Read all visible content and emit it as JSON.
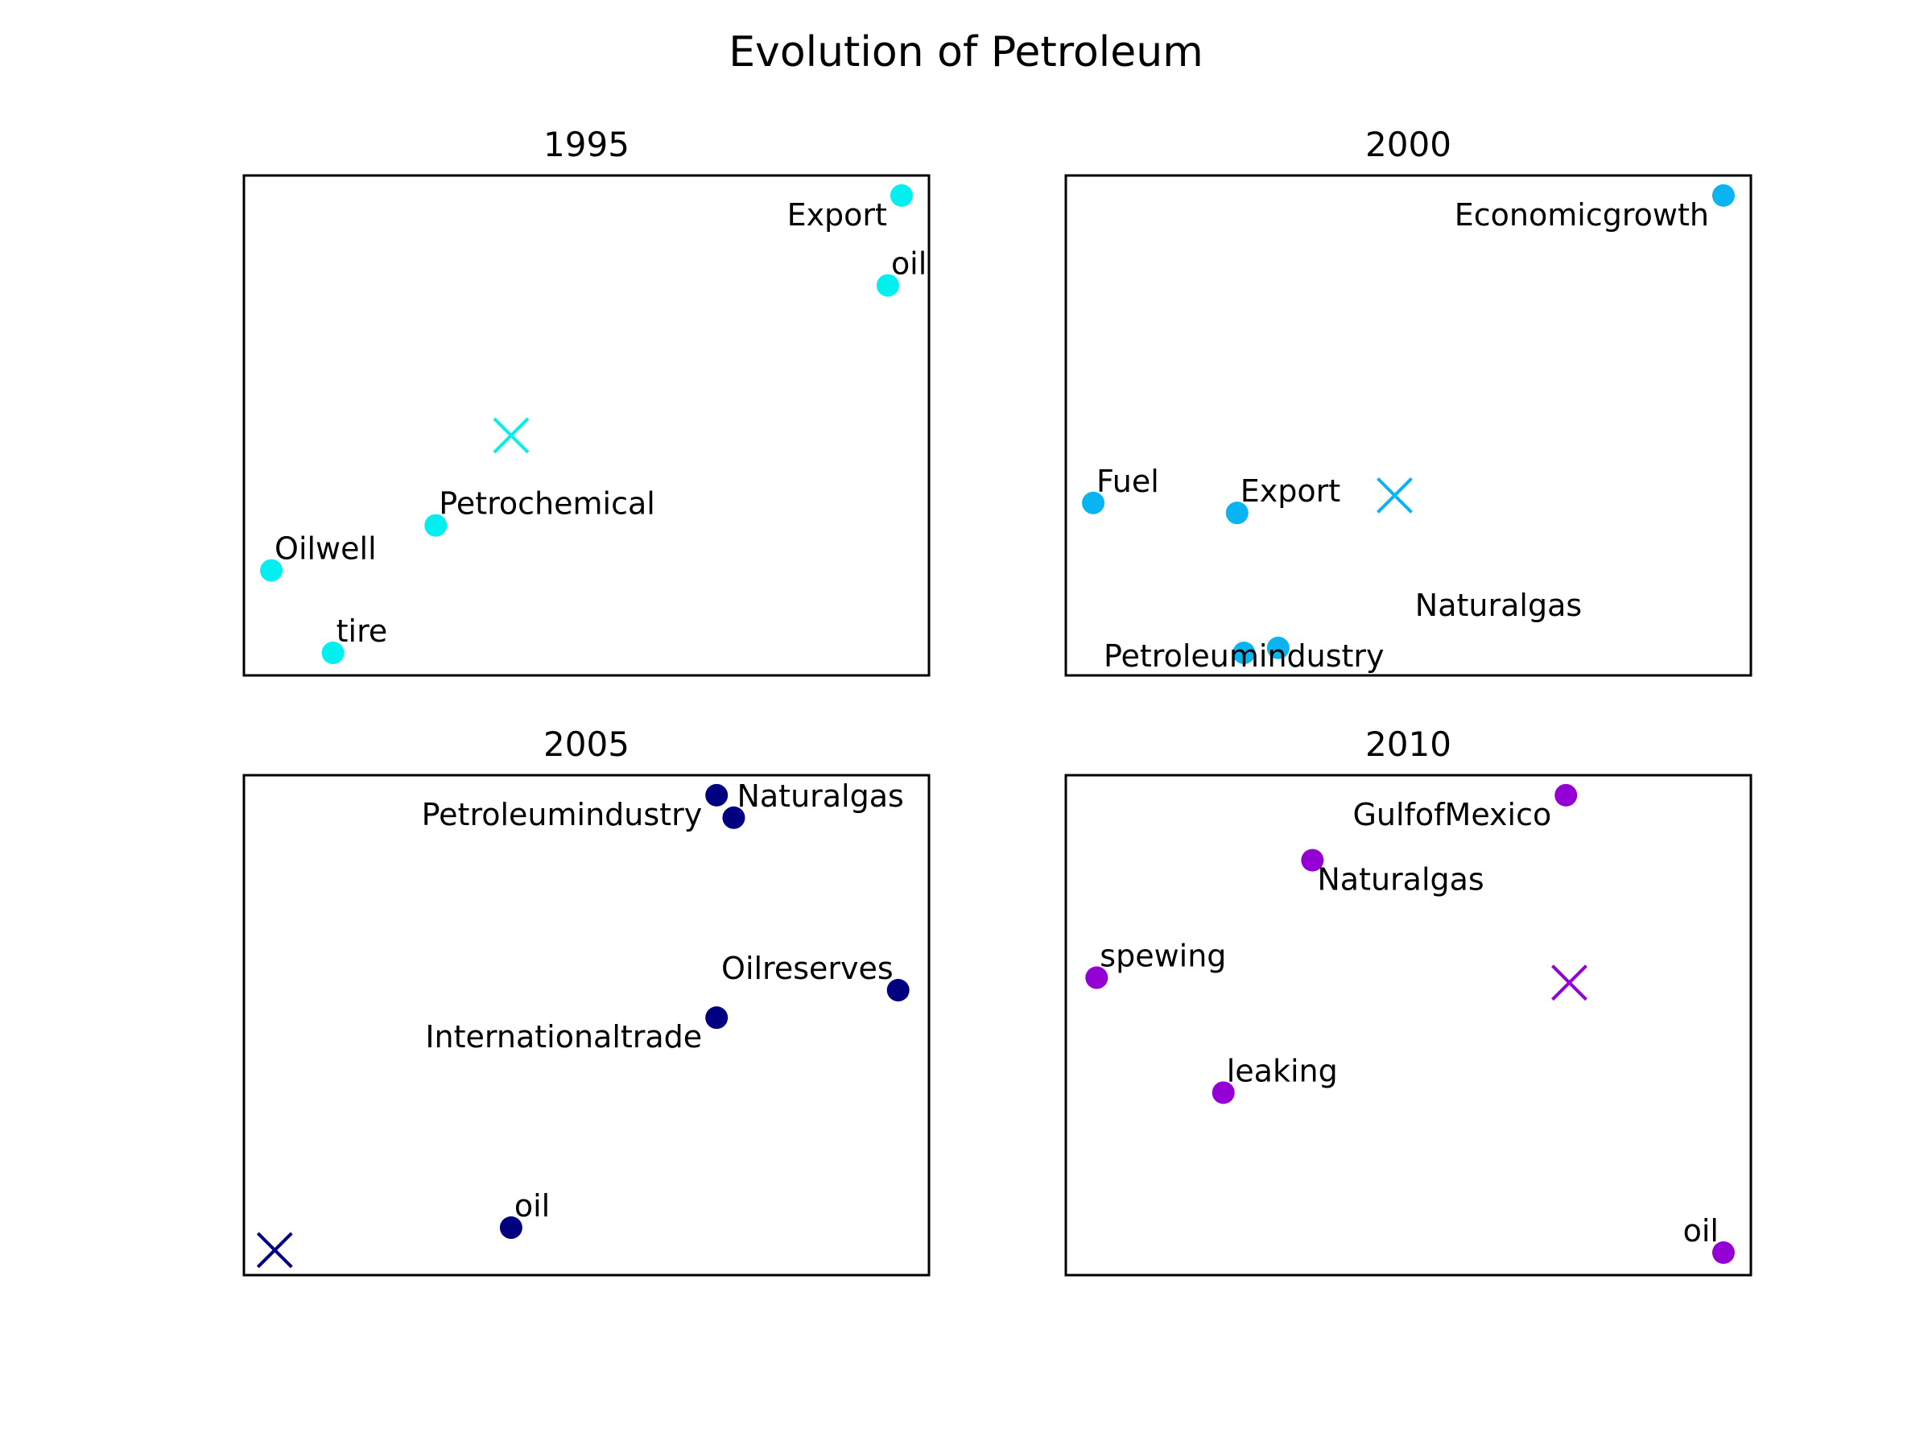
{
  "chart_data": {
    "type": "scatter",
    "title": "Evolution of Petroleum",
    "panels": [
      {
        "title": "1995",
        "color": "#00f0f0",
        "centroid": {
          "x": 3.9,
          "y": 4.8
        },
        "points": [
          {
            "label": "Export",
            "x": 9.6,
            "y": 9.6,
            "label_side": "left-below"
          },
          {
            "label": "oil",
            "x": 9.4,
            "y": 7.8,
            "label_side": "right-above"
          },
          {
            "label": "Petrochemical",
            "x": 2.8,
            "y": 3.0,
            "label_side": "right-above"
          },
          {
            "label": "Oilwell",
            "x": 0.4,
            "y": 2.1,
            "label_side": "right-above"
          },
          {
            "label": "tire",
            "x": 1.3,
            "y": 0.45,
            "label_side": "right-above"
          }
        ]
      },
      {
        "title": "2000",
        "color": "#0ab4f0",
        "centroid": {
          "x": 4.8,
          "y": 3.6
        },
        "points": [
          {
            "label": "Economicgrowth",
            "x": 9.6,
            "y": 9.6,
            "label_side": "left-below"
          },
          {
            "label": "Fuel",
            "x": 0.4,
            "y": 3.45,
            "label_side": "right-above"
          },
          {
            "label": "Export",
            "x": 2.5,
            "y": 3.25,
            "label_side": "right-above"
          },
          {
            "label": "Naturalgas",
            "x": 3.1,
            "y": 0.55,
            "label_side": "far-right-above"
          },
          {
            "label": "Petroleumindustry",
            "x": 2.6,
            "y": 0.45,
            "label_side": "center-below"
          }
        ]
      },
      {
        "title": "2005",
        "color": "#000080",
        "centroid": {
          "x": 0.45,
          "y": 0.5
        },
        "points": [
          {
            "label": "Petroleumindustry",
            "x": 6.9,
            "y": 9.6,
            "label_side": "left-below"
          },
          {
            "label": "Naturalgas",
            "x": 7.15,
            "y": 9.15,
            "label_side": "right-above"
          },
          {
            "label": "Oilreserves",
            "x": 9.55,
            "y": 5.7,
            "label_side": "left-above"
          },
          {
            "label": "Internationaltrade",
            "x": 6.9,
            "y": 5.15,
            "label_side": "left-below"
          },
          {
            "label": "oil",
            "x": 3.9,
            "y": 0.95,
            "label_side": "right-above"
          }
        ]
      },
      {
        "title": "2010",
        "color": "#9400d3",
        "centroid": {
          "x": 7.35,
          "y": 5.85
        },
        "points": [
          {
            "label": "GulfofMexico",
            "x": 7.3,
            "y": 9.6,
            "label_side": "left-below"
          },
          {
            "label": "Naturalgas",
            "x": 3.6,
            "y": 8.3,
            "label_side": "right-below"
          },
          {
            "label": "spewing",
            "x": 0.45,
            "y": 5.95,
            "label_side": "right-above"
          },
          {
            "label": "leaking",
            "x": 2.3,
            "y": 3.65,
            "label_side": "right-above"
          },
          {
            "label": "oil",
            "x": 9.6,
            "y": 0.45,
            "label_side": "left-above"
          }
        ]
      }
    ],
    "xlim": [
      0,
      10
    ],
    "ylim": [
      0,
      10
    ],
    "xticks": [],
    "yticks": [],
    "grid": false,
    "legend": false
  }
}
